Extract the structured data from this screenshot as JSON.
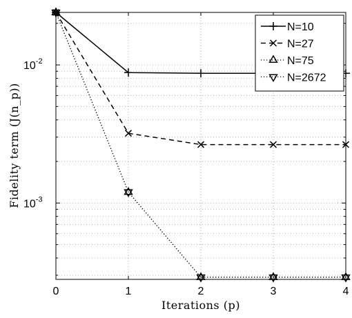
{
  "chart_data": {
    "type": "line",
    "x": [
      0,
      1,
      2,
      3,
      4
    ],
    "xlabel": "Iterations (p)",
    "ylabel": "Fidelity term (J(n_p))",
    "xlim": [
      0,
      4
    ],
    "ylim": [
      0.00028,
      0.024
    ],
    "yscale": "log",
    "grid": true,
    "legend_position": "top-right",
    "x_tick_labels": [
      "0",
      "1",
      "2",
      "3",
      "4"
    ],
    "y_tick_labels": [
      {
        "value": 0.01,
        "base": "10",
        "exp": "-2"
      },
      {
        "value": 0.001,
        "base": "10",
        "exp": "-3"
      }
    ],
    "series": [
      {
        "name": "N=10",
        "values": [
          0.024,
          0.0088,
          0.0087,
          0.0087,
          0.0087
        ],
        "line": "solid",
        "marker": "plus"
      },
      {
        "name": "N=27",
        "values": [
          0.024,
          0.0032,
          0.00265,
          0.00265,
          0.00265
        ],
        "line": "dashed",
        "marker": "x"
      },
      {
        "name": "N=75",
        "values": [
          0.024,
          0.0012,
          0.00029,
          0.00029,
          0.00029
        ],
        "line": "dotted",
        "marker": "triangle-up"
      },
      {
        "name": "N=2672",
        "values": [
          0.024,
          0.0012,
          0.00029,
          0.00029,
          0.00029
        ],
        "line": "dotted",
        "marker": "triangle-down"
      }
    ]
  }
}
